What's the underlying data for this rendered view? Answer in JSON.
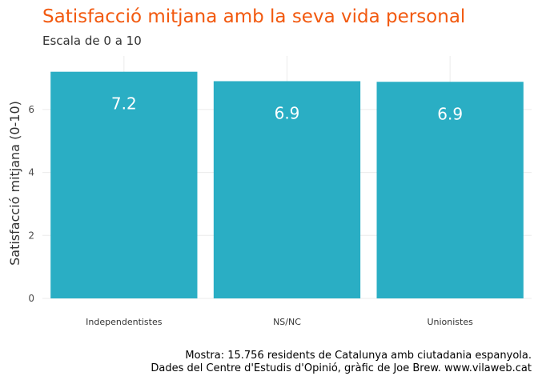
{
  "colors": {
    "bar": "#2aaec4",
    "title": "#f2590f",
    "grid": "#ebebeb",
    "axis_text": "#4d4d4d",
    "bar_label": "#ffffff"
  },
  "chart_data": {
    "type": "bar",
    "title": "Satisfacció mitjana amb la seva vida personal",
    "subtitle": "Escala de 0 a 10",
    "categories": [
      "Independentistes",
      "NS/NC",
      "Unionistes"
    ],
    "values": [
      7.2,
      6.9,
      6.88
    ],
    "data_labels": [
      "7.2",
      "6.9",
      "6.9"
    ],
    "xlabel": "",
    "ylabel": "Satisfacció mitjana (0-10)",
    "ylim": [
      0,
      7.7
    ],
    "yticks": [
      0,
      2,
      4,
      6
    ],
    "grid": true,
    "caption_lines": [
      "Mostra: 15.756 residents de Catalunya amb ciutadania espanyola.",
      "Dades del Centre d'Estudis d'Opinió, gràfic de Joe Brew. www.vilaweb.cat"
    ]
  }
}
